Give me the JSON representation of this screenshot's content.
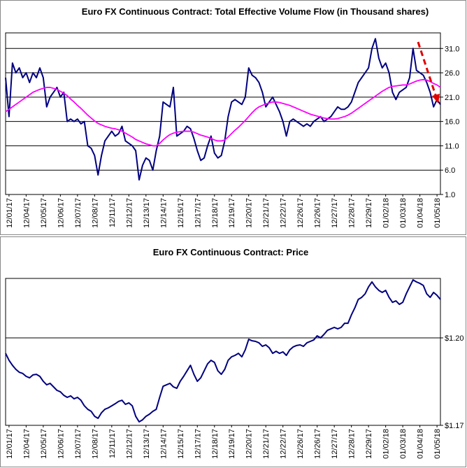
{
  "chart_data": [
    {
      "type": "line",
      "title": "Euro FX Continuous Contract: Total Effective Volume Flow (in Thousand shares)",
      "xlim": [
        0,
        127
      ],
      "xticks": [
        {
          "value": 1,
          "label": "12/01/17"
        },
        {
          "value": 6,
          "label": "12/04/17"
        },
        {
          "value": 11,
          "label": "12/05/17"
        },
        {
          "value": 16,
          "label": "12/06/17"
        },
        {
          "value": 21,
          "label": "12/07/17"
        },
        {
          "value": 26,
          "label": "12/08/17"
        },
        {
          "value": 31,
          "label": "12/11/17"
        },
        {
          "value": 36,
          "label": "12/12/17"
        },
        {
          "value": 41,
          "label": "12/13/17"
        },
        {
          "value": 46,
          "label": "12/14/17"
        },
        {
          "value": 51,
          "label": "12/15/17"
        },
        {
          "value": 56,
          "label": "12/17/17"
        },
        {
          "value": 61,
          "label": "12/18/17"
        },
        {
          "value": 66,
          "label": "12/19/17"
        },
        {
          "value": 71,
          "label": "12/20/17"
        },
        {
          "value": 76,
          "label": "12/21/17"
        },
        {
          "value": 81,
          "label": "12/22/17"
        },
        {
          "value": 86,
          "label": "12/26/17"
        },
        {
          "value": 91,
          "label": "12/26/17"
        },
        {
          "value": 96,
          "label": "12/27/17"
        },
        {
          "value": 101,
          "label": "12/28/17"
        },
        {
          "value": 106,
          "label": "12/29/17"
        },
        {
          "value": 111,
          "label": "01/02/18"
        },
        {
          "value": 116,
          "label": "01/03/18"
        },
        {
          "value": 121,
          "label": "01/04/18"
        },
        {
          "value": 126,
          "label": "01/05/18"
        }
      ],
      "ylim": [
        1.0,
        34.2
      ],
      "yticks": [
        {
          "value": 1,
          "label": "1.0"
        },
        {
          "value": 6,
          "label": "6.0"
        },
        {
          "value": 11,
          "label": "11.0"
        },
        {
          "value": 16,
          "label": "16.0"
        },
        {
          "value": 21,
          "label": "21.0"
        },
        {
          "value": 26,
          "label": "26.0"
        },
        {
          "value": 31,
          "label": "31.0"
        }
      ],
      "grid": true,
      "series": [
        {
          "color": "#000080",
          "values": [
            25,
            17,
            28,
            26,
            27,
            25,
            26,
            24,
            26,
            25,
            27,
            25,
            19,
            21,
            22,
            23,
            21,
            22,
            16,
            16.5,
            16,
            16.5,
            15.5,
            16,
            11,
            10.5,
            9,
            5,
            9,
            12,
            13,
            14,
            13,
            13.5,
            15,
            12,
            11.5,
            11,
            10,
            4,
            7,
            8.5,
            8,
            6,
            10,
            13,
            20,
            19.5,
            19,
            23,
            13,
            13.5,
            14,
            15,
            14.5,
            12.5,
            10,
            8,
            8.5,
            11,
            13,
            9.5,
            8.5,
            9,
            12,
            17,
            20,
            20.5,
            20,
            19.5,
            21,
            27,
            25.5,
            25,
            24,
            22,
            19,
            20,
            21,
            19.5,
            18,
            16,
            13,
            16,
            16.5,
            16,
            15.5,
            15,
            15.5,
            15,
            16,
            16.5,
            17,
            16,
            16.5,
            17,
            18,
            19,
            18.5,
            18.5,
            19,
            20,
            22,
            24,
            25,
            26,
            27,
            31,
            33,
            29,
            27,
            28,
            26,
            22,
            20.5,
            22,
            22.5,
            23,
            25,
            31,
            26.5,
            26,
            25.5,
            24,
            22,
            19,
            20.5,
            19.5
          ]
        },
        {
          "color": "#ff00ff",
          "values": [
            18,
            18.5,
            19,
            19.5,
            20,
            20.5,
            21,
            21.5,
            22,
            22.3,
            22.6,
            22.8,
            23,
            23,
            22.8,
            22.6,
            22.2,
            21.8,
            21.3,
            20.6,
            20,
            19.3,
            18.7,
            18,
            17.3,
            16.7,
            16.1,
            15.6,
            15.3,
            15,
            14.8,
            14.6,
            14.5,
            14.3,
            14,
            13.6,
            13.2,
            12.8,
            12.3,
            12,
            11.7,
            11.4,
            11.2,
            11,
            11,
            11.5,
            12.2,
            12.8,
            13.3,
            13.6,
            13.8,
            13.9,
            14,
            14,
            14,
            13.8,
            13.5,
            13.2,
            13,
            12.8,
            12.5,
            12.2,
            12,
            12,
            12.2,
            12.8,
            13.5,
            14.2,
            14.8,
            15.5,
            16.2,
            17,
            17.8,
            18.5,
            19,
            19.3,
            19.6,
            19.8,
            20,
            20,
            19.9,
            19.7,
            19.5,
            19.3,
            19,
            18.7,
            18.4,
            18.1,
            17.8,
            17.5,
            17.3,
            17.1,
            16.9,
            16.7,
            16.6,
            16.5,
            16.5,
            16.6,
            16.8,
            17,
            17.3,
            17.7,
            18.2,
            18.7,
            19.2,
            19.7,
            20.2,
            20.7,
            21.2,
            21.7,
            22.2,
            22.6,
            23,
            23.2,
            23.3,
            23.4,
            23.5,
            23.5,
            23.7,
            24,
            24.3,
            24.5,
            24.6,
            24.5,
            24.2,
            23.8,
            23.5,
            23
          ]
        }
      ]
    },
    {
      "type": "line",
      "title": "Euro FX Continuous Contract: Price",
      "xlim": [
        0,
        127
      ],
      "xticks": [
        {
          "value": 1,
          "label": "12/01/17"
        },
        {
          "value": 6,
          "label": "12/04/17"
        },
        {
          "value": 11,
          "label": "12/05/17"
        },
        {
          "value": 16,
          "label": "12/06/17"
        },
        {
          "value": 21,
          "label": "12/07/17"
        },
        {
          "value": 26,
          "label": "12/08/17"
        },
        {
          "value": 31,
          "label": "12/11/17"
        },
        {
          "value": 36,
          "label": "12/12/17"
        },
        {
          "value": 41,
          "label": "12/13/17"
        },
        {
          "value": 46,
          "label": "12/14/17"
        },
        {
          "value": 51,
          "label": "12/15/17"
        },
        {
          "value": 56,
          "label": "12/17/17"
        },
        {
          "value": 61,
          "label": "12/18/17"
        },
        {
          "value": 66,
          "label": "12/19/17"
        },
        {
          "value": 71,
          "label": "12/20/17"
        },
        {
          "value": 76,
          "label": "12/21/17"
        },
        {
          "value": 81,
          "label": "12/22/17"
        },
        {
          "value": 86,
          "label": "12/26/17"
        },
        {
          "value": 91,
          "label": "12/26/17"
        },
        {
          "value": 96,
          "label": "12/27/17"
        },
        {
          "value": 101,
          "label": "12/28/17"
        },
        {
          "value": 106,
          "label": "12/29/17"
        },
        {
          "value": 111,
          "label": "01/02/18"
        },
        {
          "value": 116,
          "label": "01/03/18"
        },
        {
          "value": 121,
          "label": "01/04/18"
        },
        {
          "value": 126,
          "label": "01/05/18"
        }
      ],
      "ylim": [
        1.17,
        1.2204
      ],
      "yticks": [
        {
          "value": 1.17,
          "label": "$1.17"
        },
        {
          "value": 1.2,
          "label": "$1.20"
        }
      ],
      "grid": true,
      "series": [
        {
          "color": "#000080",
          "values": [
            1.1947,
            1.1923,
            1.1906,
            1.1892,
            1.1882,
            1.1878,
            1.1868,
            1.1863,
            1.1873,
            1.1875,
            1.1868,
            1.1851,
            1.1839,
            1.1844,
            1.1832,
            1.182,
            1.1815,
            1.1803,
            1.1796,
            1.1801,
            1.1791,
            1.1796,
            1.1786,
            1.1767,
            1.1755,
            1.1748,
            1.1731,
            1.1724,
            1.1743,
            1.1755,
            1.176,
            1.1767,
            1.1774,
            1.1782,
            1.1786,
            1.1772,
            1.1777,
            1.1767,
            1.1731,
            1.1712,
            1.1719,
            1.1731,
            1.1738,
            1.1748,
            1.1755,
            1.1796,
            1.1834,
            1.1839,
            1.1844,
            1.1832,
            1.1827,
            1.1851,
            1.1868,
            1.1887,
            1.1906,
            1.1875,
            1.1851,
            1.1863,
            1.1887,
            1.1911,
            1.1923,
            1.1916,
            1.1887,
            1.1875,
            1.1892,
            1.1923,
            1.1935,
            1.194,
            1.1947,
            1.1935,
            1.1959,
            1.1995,
            1.199,
            1.1988,
            1.1983,
            1.1971,
            1.1976,
            1.1966,
            1.1947,
            1.1954,
            1.1947,
            1.1952,
            1.194,
            1.1959,
            1.1969,
            1.1974,
            1.1976,
            1.1971,
            1.1983,
            1.1988,
            1.1993,
            1.2007,
            1.2,
            1.2012,
            1.2026,
            1.2031,
            1.2036,
            1.2031,
            1.2036,
            1.205,
            1.205,
            1.2079,
            1.2103,
            1.2132,
            1.2139,
            1.2151,
            1.2175,
            1.2192,
            1.2175,
            1.2163,
            1.2156,
            1.2163,
            1.2139,
            1.2122,
            1.2127,
            1.2115,
            1.2122,
            1.2151,
            1.2175,
            1.2199,
            1.2192,
            1.2187,
            1.218,
            1.2151,
            1.2139,
            1.2156,
            1.2146,
            1.2132
          ]
        }
      ]
    }
  ]
}
